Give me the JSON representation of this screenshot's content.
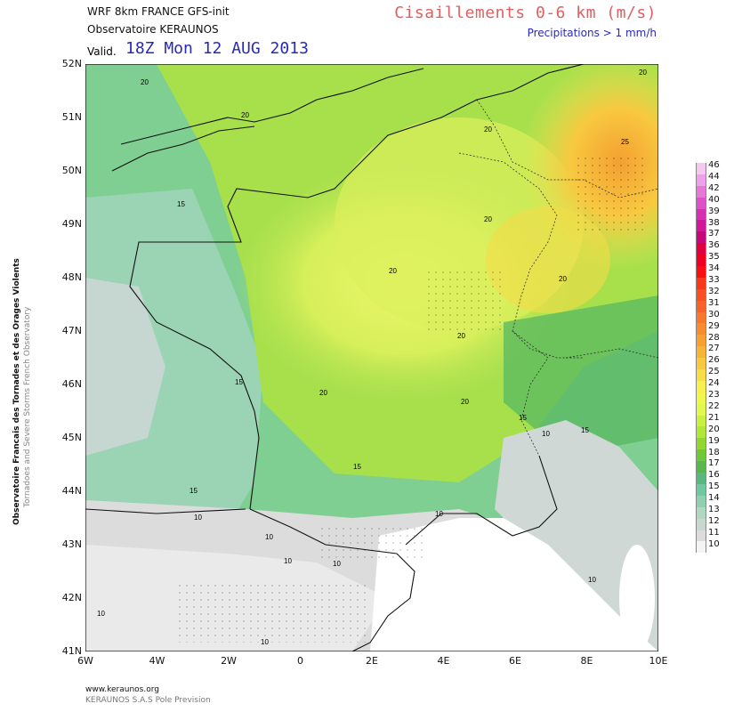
{
  "header": {
    "model": "WRF 8km FRANCE  GFS-init",
    "observatory": "Observatoire KERAUNOS",
    "valid_label": "Valid.",
    "valid_time": "18Z Mon 12 AUG 2013",
    "title": "Cisaillements 0-6 km (m/s)",
    "subtitle": "Precipitations > 1 mm/h"
  },
  "side": {
    "line1": "Observatoire Francais des Tornades et des Orages Violents",
    "line2": "Tornadoes and Severe Storms French Observatory"
  },
  "axes": {
    "lat_labels": [
      "52N",
      "51N",
      "50N",
      "49N",
      "48N",
      "47N",
      "46N",
      "45N",
      "44N",
      "43N",
      "42N",
      "41N"
    ],
    "lon_labels": [
      "6W",
      "4W",
      "2W",
      "0",
      "2E",
      "4E",
      "6E",
      "8E",
      "10E"
    ]
  },
  "contour_labels": [
    "20",
    "20",
    "20",
    "25",
    "20",
    "15",
    "20",
    "20",
    "20",
    "20",
    "15",
    "20",
    "20",
    "15",
    "10",
    "15",
    "15",
    "15",
    "10",
    "10",
    "10",
    "10",
    "10",
    "10",
    "10",
    "10"
  ],
  "colorbar": {
    "values": [
      "46",
      "44",
      "42",
      "40",
      "39",
      "38",
      "37",
      "36",
      "35",
      "34",
      "33",
      "32",
      "31",
      "30",
      "29",
      "28",
      "27",
      "26",
      "25",
      "24",
      "23",
      "22",
      "21",
      "20",
      "19",
      "18",
      "17",
      "16",
      "15",
      "14",
      "13",
      "12",
      "11",
      "10"
    ],
    "colors": [
      "#f5c8f0",
      "#f0a0e8",
      "#e878d8",
      "#e050c8",
      "#d830b0",
      "#d01898",
      "#c80878",
      "#e00040",
      "#f00020",
      "#f81010",
      "#f83818",
      "#f85020",
      "#f86428",
      "#f87830",
      "#f88c30",
      "#f8a030",
      "#f8b438",
      "#f8c840",
      "#f8dc48",
      "#f8f050",
      "#f0f850",
      "#e0f850",
      "#c8f040",
      "#b0e838",
      "#90d830",
      "#70c838",
      "#58b850",
      "#58b880",
      "#70c8a0",
      "#90d0b0",
      "#b0d8c0",
      "#c8d8d0",
      "#dcdcdc",
      "#f4f4f4"
    ]
  },
  "footer": {
    "url": "www.keraunos.org",
    "company": "KERAUNOS S.A.S Pole Prevision"
  }
}
